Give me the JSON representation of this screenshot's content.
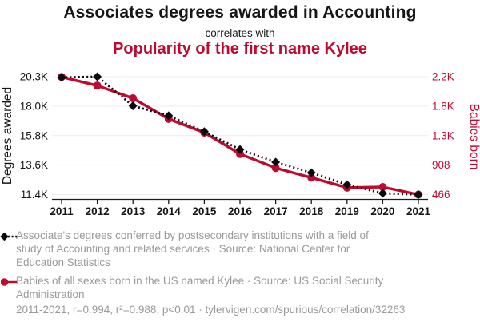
{
  "header": {
    "title": "Associates degrees awarded in Accounting",
    "connector": "correlates with",
    "subtitle": "Popularity of the first name Kylee"
  },
  "colors": {
    "title_black": "#161616",
    "series_red": "#bf0a30",
    "series_black": "#0b0b0b",
    "legend_gray": "#9a9a9a",
    "gridline_gray": "#ececec",
    "axis_black": "#1c1c1c"
  },
  "chart_data": {
    "type": "line",
    "x": [
      "2011",
      "2012",
      "2013",
      "2014",
      "2015",
      "2016",
      "2017",
      "2018",
      "2019",
      "2020",
      "2021"
    ],
    "series": [
      {
        "name": "Associates degrees awarded in Accounting",
        "axis": "left",
        "marker": "diamond",
        "line": "dashed",
        "color_key": "series_black",
        "values": [
          20250,
          20300,
          18100,
          17350,
          16150,
          14800,
          13850,
          13050,
          12150,
          11500,
          11400
        ]
      },
      {
        "name": "Babies of all sexes born in the US named Kylee",
        "axis": "right",
        "marker": "circle",
        "line": "solid",
        "color_key": "series_red",
        "values": [
          2230,
          2100,
          1910,
          1600,
          1395,
          1075,
          865,
          720,
          570,
          580,
          466
        ]
      }
    ],
    "left_axis": {
      "label": "Degrees awarded",
      "min": 11400,
      "max": 20300,
      "ticks": [
        "20.3K",
        "18.0K",
        "15.8K",
        "13.6K",
        "11.4K"
      ]
    },
    "right_axis": {
      "label": "Babies born",
      "min": 466,
      "max": 2234,
      "ticks": [
        "2.2K",
        "1.8K",
        "1.3K",
        "908",
        "466"
      ]
    },
    "grid": true,
    "legend_position": "below"
  },
  "legend": [
    {
      "icon": "black-diamond-dashed-line-icon",
      "lines": [
        "Associate's degrees conferred by postsecondary institutions with a field of",
        "study of Accounting and related services · Source: National Center for",
        "Education Statistics"
      ]
    },
    {
      "icon": "red-circle-solid-line-icon",
      "lines": [
        "Babies of all sexes born in the US named Kylee · Source: US Social Security",
        "Administration"
      ]
    }
  ],
  "footer": {
    "text": "2011-2021, r=0.994, r²=0.988, p<0.01 · tylervigen.com/spurious/correlation/32263"
  }
}
